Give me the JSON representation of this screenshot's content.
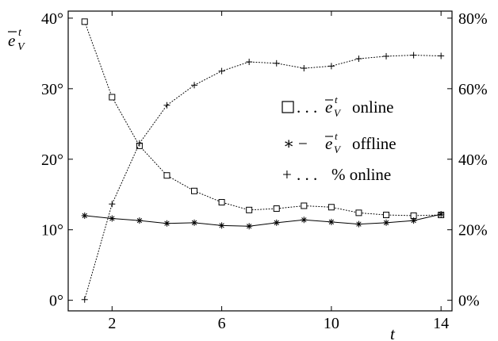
{
  "chart_data": {
    "type": "line",
    "title": "",
    "xlabel": "t",
    "ylabel_left": "ē_V^t",
    "ylabel_right": "",
    "x": [
      1,
      2,
      3,
      4,
      5,
      6,
      7,
      8,
      9,
      10,
      11,
      12,
      13,
      14
    ],
    "xlim": [
      0.4,
      14.4
    ],
    "xticks": [
      2,
      6,
      10,
      14
    ],
    "ylim_left": [
      -1.5,
      41
    ],
    "yticks_left": [
      0,
      10,
      20,
      30,
      40
    ],
    "ytick_labels_left": [
      "0°",
      "10°",
      "20°",
      "30°",
      "40°"
    ],
    "ylim_right": [
      -3,
      82
    ],
    "yticks_right": [
      0,
      20,
      40,
      60,
      80
    ],
    "ytick_labels_right": [
      "0%",
      "20%",
      "40%",
      "60%",
      "80%"
    ],
    "series": [
      {
        "name": "ē_V^t online",
        "axis": "left",
        "marker": "square",
        "line": "dotted",
        "values": [
          39.5,
          28.8,
          21.9,
          17.7,
          15.5,
          13.9,
          12.8,
          13.0,
          13.4,
          13.2,
          12.4,
          12.1,
          12.0,
          12.1
        ]
      },
      {
        "name": "ē_V^t offline",
        "axis": "left",
        "marker": "asterisk",
        "line": "solid",
        "values": [
          12.0,
          11.6,
          11.3,
          10.9,
          11.0,
          10.6,
          10.5,
          11.0,
          11.4,
          11.1,
          10.8,
          11.0,
          11.3,
          12.2
        ]
      },
      {
        "name": "% online",
        "axis": "right",
        "marker": "plus",
        "line": "dotted",
        "values": [
          0.2,
          27.3,
          44.5,
          55.3,
          61.0,
          65.0,
          67.6,
          67.2,
          65.8,
          66.4,
          68.5,
          69.2,
          69.5,
          69.3
        ]
      }
    ],
    "legend": {
      "placement": "right-center",
      "entries": [
        {
          "symbol": "□ . . .",
          "text": "online"
        },
        {
          "symbol": "∗ −",
          "text": "offline"
        },
        {
          "symbol": "+ . . .",
          "text": "% online"
        }
      ]
    },
    "grid": false
  }
}
